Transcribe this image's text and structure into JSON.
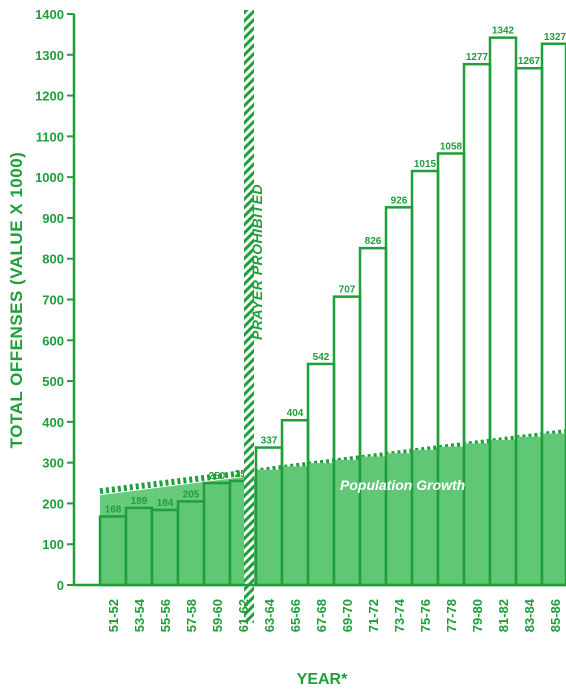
{
  "chart_data": {
    "type": "bar",
    "title": "",
    "xlabel": "YEAR*",
    "ylabel": "TOTAL OFFENSES (VALUE X 1000)",
    "ylim": [
      0,
      1400
    ],
    "yticks": [
      0,
      100,
      200,
      300,
      400,
      500,
      600,
      700,
      800,
      900,
      1000,
      1100,
      1200,
      1300,
      1400
    ],
    "grid": false,
    "legend": "none",
    "categories": [
      "51-52",
      "53-54",
      "55-56",
      "57-58",
      "59-60",
      "61-62",
      "63-64",
      "65-66",
      "67-68",
      "69-70",
      "71-72",
      "73-74",
      "75-76",
      "77-78",
      "79-80",
      "81-82",
      "83-84",
      "85-86"
    ],
    "values": [
      168,
      189,
      184,
      205,
      250,
      255,
      337,
      404,
      542,
      707,
      826,
      926,
      1015,
      1058,
      1277,
      1342,
      1267,
      1327
    ],
    "population_growth": {
      "label": "Population Growth",
      "start_value": 230,
      "end_value": 375
    },
    "annotation": {
      "label": "PRAYER PROHIBITED",
      "position_after_category": "61-62"
    },
    "colors": {
      "primary": "#1f9e3a",
      "fill": "#5fc776",
      "background": "#ffffff"
    }
  }
}
